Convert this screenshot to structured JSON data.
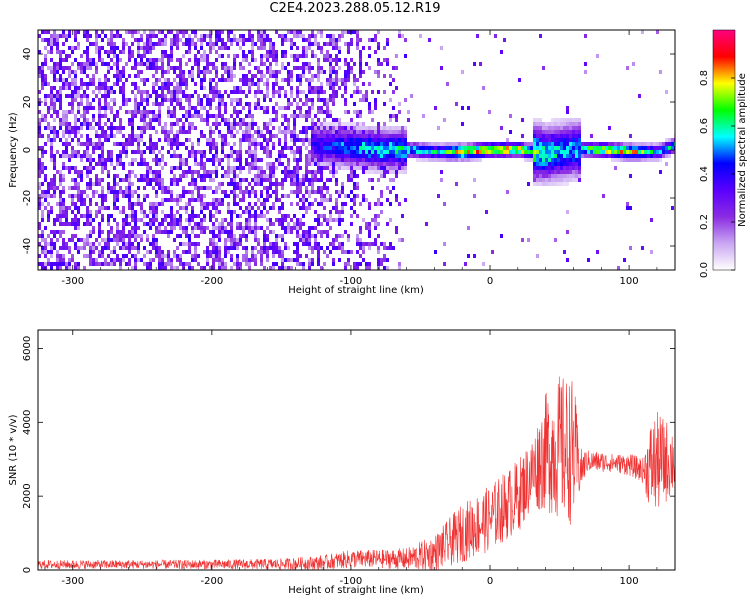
{
  "figure_title": "C2E4.2023.288.05.12.R19",
  "chart_data": [
    {
      "type": "heatmap",
      "title": "",
      "xlabel": "Height of straight line (km)",
      "ylabel": "Frequency (Hz)",
      "xlim": [
        -325,
        133
      ],
      "ylim": [
        -50,
        50
      ],
      "x_ticks": [
        -300,
        -200,
        -100,
        0,
        100
      ],
      "y_ticks": [
        -40,
        -20,
        0,
        20,
        40
      ],
      "colorbar": {
        "label": "Normalized spectral amplitude",
        "range": [
          0,
          1
        ],
        "ticks": [
          "0.0",
          "0.2",
          "0.4",
          "0.6",
          "0.8"
        ],
        "colors": [
          "#ffffff",
          "#c9a6f2",
          "#8a2be2",
          "#5a00ff",
          "#0000ff",
          "#00ffff",
          "#00ff00",
          "#ffff00",
          "#ff0000",
          "#ff0080"
        ]
      },
      "ridge": [
        {
          "x": -130,
          "freq": 3,
          "amp": 0.4
        },
        {
          "x": -100,
          "freq": 2,
          "amp": 0.55
        },
        {
          "x": -80,
          "freq": 1,
          "amp": 0.6
        },
        {
          "x": -60,
          "freq": 1,
          "amp": 0.62
        },
        {
          "x": -40,
          "freq": 0,
          "amp": 0.65
        },
        {
          "x": -20,
          "freq": 0,
          "amp": 0.85
        },
        {
          "x": 0,
          "freq": 1,
          "amp": 0.88
        },
        {
          "x": 20,
          "freq": 1,
          "amp": 0.82
        },
        {
          "x": 40,
          "freq": -1,
          "amp": 0.6
        },
        {
          "x": 60,
          "freq": 1,
          "amp": 0.55
        },
        {
          "x": 80,
          "freq": 1,
          "amp": 0.82
        },
        {
          "x": 100,
          "freq": 0,
          "amp": 0.85
        },
        {
          "x": 120,
          "freq": 0,
          "amp": 0.55
        },
        {
          "x": 133,
          "freq": 3,
          "amp": 0.6
        }
      ]
    },
    {
      "type": "line",
      "title": "",
      "xlabel": "Height of straight line (km)",
      "ylabel": "SNR (10 * v/v)",
      "xlim": [
        -325,
        133
      ],
      "ylim": [
        0,
        6500
      ],
      "x_ticks": [
        -300,
        -200,
        -100,
        0,
        100
      ],
      "y_ticks": [
        0,
        2000,
        4000,
        6000
      ],
      "color": "#f03232",
      "series": [
        {
          "x": [
            -325,
            -300,
            -250,
            -200,
            -150,
            -120,
            -100,
            -80,
            -60,
            -40,
            -20,
            0,
            20,
            30,
            40,
            50,
            60,
            65,
            70,
            90,
            100,
            110,
            115,
            120,
            133
          ],
          "y": [
            150,
            150,
            150,
            150,
            160,
            200,
            300,
            300,
            300,
            450,
            1000,
            1400,
            2000,
            2600,
            3200,
            3300,
            3200,
            2700,
            2950,
            2900,
            2850,
            2700,
            2800,
            2900,
            3000
          ],
          "spread": [
            120,
            120,
            120,
            130,
            150,
            200,
            250,
            250,
            300,
            500,
            800,
            900,
            1000,
            1000,
            1600,
            2000,
            2000,
            600,
            300,
            250,
            300,
            350,
            1200,
            1400,
            900
          ]
        }
      ]
    }
  ]
}
